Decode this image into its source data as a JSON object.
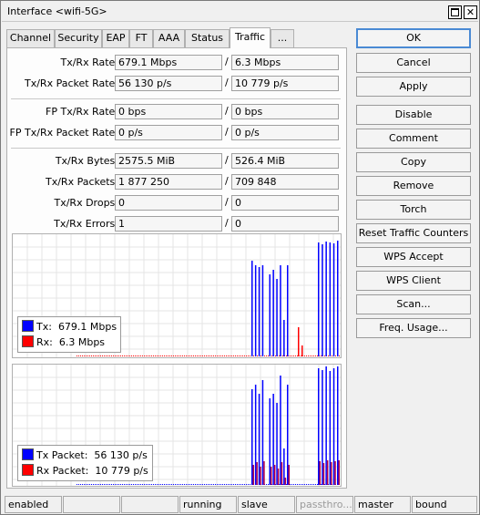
{
  "window": {
    "title": "Interface <wifi-5G>"
  },
  "tabs": [
    {
      "label": "Channel"
    },
    {
      "label": "Security"
    },
    {
      "label": "EAP"
    },
    {
      "label": "FT"
    },
    {
      "label": "AAA"
    },
    {
      "label": "Status"
    },
    {
      "label": "Traffic"
    },
    {
      "label": "..."
    }
  ],
  "rows": [
    {
      "label": "Tx/Rx Rate:",
      "tx": "679.1 Mbps",
      "rx": "6.3 Mbps"
    },
    {
      "label": "Tx/Rx Packet Rate:",
      "tx": "56 130 p/s",
      "rx": "10 779 p/s"
    },
    {
      "label": "FP Tx/Rx Rate:",
      "tx": "0 bps",
      "rx": "0 bps"
    },
    {
      "label": "FP Tx/Rx Packet Rate:",
      "tx": "0 p/s",
      "rx": "0 p/s"
    },
    {
      "label": "Tx/Rx Bytes:",
      "tx": "2575.5 MiB",
      "rx": "526.4 MiB"
    },
    {
      "label": "Tx/Rx Packets:",
      "tx": "1 877 250",
      "rx": "709 848"
    },
    {
      "label": "Tx/Rx Drops:",
      "tx": "0",
      "rx": "0"
    },
    {
      "label": "Tx/Rx Errors:",
      "tx": "1",
      "rx": "0"
    }
  ],
  "separator": "/",
  "graph1": {
    "legend": [
      {
        "label": "Tx:",
        "value": "679.1 Mbps",
        "color": "#0000ff"
      },
      {
        "label": "Rx:",
        "value": "6.3 Mbps",
        "color": "#ff0000"
      }
    ]
  },
  "graph2": {
    "legend": [
      {
        "label": "Tx Packet:",
        "value": "56 130 p/s",
        "color": "#0000ff"
      },
      {
        "label": "Rx Packet:",
        "value": "10 779 p/s",
        "color": "#ff0000"
      }
    ]
  },
  "buttons": [
    {
      "label": "OK"
    },
    {
      "label": "Cancel"
    },
    {
      "label": "Apply"
    },
    {
      "label": "Disable"
    },
    {
      "label": "Comment"
    },
    {
      "label": "Copy"
    },
    {
      "label": "Remove"
    },
    {
      "label": "Torch"
    },
    {
      "label": "Reset Traffic Counters"
    },
    {
      "label": "WPS Accept"
    },
    {
      "label": "WPS Client"
    },
    {
      "label": "Scan..."
    },
    {
      "label": "Freq. Usage..."
    }
  ],
  "status": [
    {
      "text": "enabled"
    },
    {
      "text": ""
    },
    {
      "text": ""
    },
    {
      "text": "running"
    },
    {
      "text": "slave"
    },
    {
      "text": "passthro..."
    },
    {
      "text": "master"
    },
    {
      "text": "bound"
    }
  ]
}
